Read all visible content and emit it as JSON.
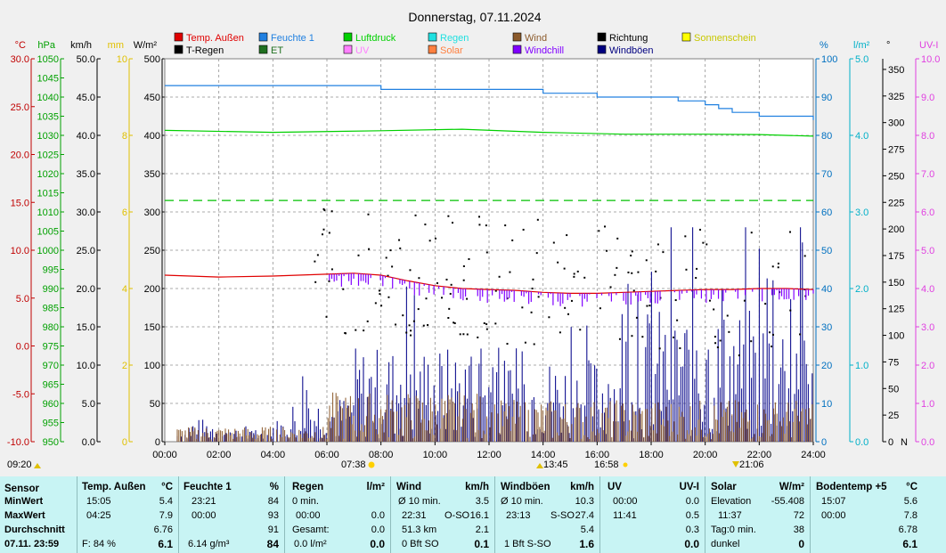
{
  "chart_data": {
    "type": "line",
    "title": "Donnerstag, 07.11.2024",
    "x": {
      "ticks": [
        "00:00",
        "02:00",
        "04:00",
        "06:00",
        "08:00",
        "10:00",
        "12:00",
        "14:00",
        "16:00",
        "18:00",
        "20:00",
        "22:00",
        "24:00"
      ],
      "range_hours": [
        0,
        24
      ]
    },
    "left_axes": [
      {
        "unit": "°C",
        "color": "#c00000",
        "ticks": [
          "30.0",
          "25.0",
          "20.0",
          "15.0",
          "10.0",
          "5.0",
          "0.0",
          "-5.0",
          "-10.0"
        ]
      },
      {
        "unit": "hPa",
        "color": "#00a000",
        "ticks": [
          "1050",
          "1045",
          "1040",
          "1035",
          "1030",
          "1025",
          "1020",
          "1015",
          "1010",
          "1005",
          "1000",
          "995",
          "990",
          "985",
          "980",
          "975",
          "970",
          "965",
          "960",
          "955",
          "950"
        ]
      },
      {
        "unit": "km/h",
        "color": "#000000",
        "ticks": [
          "50.0",
          "45.0",
          "40.0",
          "35.0",
          "30.0",
          "25.0",
          "20.0",
          "15.0",
          "10.0",
          "5.0",
          "0.0"
        ]
      },
      {
        "unit": "mm",
        "color": "#e0c000",
        "ticks": [
          "10",
          "8",
          "6",
          "4",
          "2",
          "0"
        ]
      },
      {
        "unit": "W/m²",
        "color": "#000000",
        "ticks": [
          "500",
          "450",
          "400",
          "350",
          "300",
          "250",
          "200",
          "150",
          "100",
          "50",
          "0"
        ]
      }
    ],
    "right_axes": [
      {
        "unit": "%",
        "color": "#0070c0",
        "ticks": [
          "100",
          "90",
          "80",
          "70",
          "60",
          "50",
          "40",
          "30",
          "20",
          "10",
          "0"
        ]
      },
      {
        "unit": "l/m²",
        "color": "#00b0c8",
        "ticks": [
          "5.0",
          "4.0",
          "3.0",
          "2.0",
          "1.0",
          "0.0"
        ]
      },
      {
        "unit": "°",
        "color": "#000000",
        "ticks": [
          "350",
          "325",
          "300",
          "275",
          "250",
          "225",
          "200",
          "175",
          "150",
          "125",
          "100",
          "75",
          "50",
          "25",
          "0"
        ],
        "extra": "N"
      },
      {
        "unit": "UV-I",
        "color": "#e040e0",
        "ticks": [
          "10.0",
          "9.0",
          "8.0",
          "7.0",
          "6.0",
          "5.0",
          "4.0",
          "3.0",
          "2.0",
          "1.0",
          "0.0"
        ]
      }
    ],
    "legend": [
      {
        "name": "Temp. Außen",
        "color": "#e00000"
      },
      {
        "name": "Feuchte 1",
        "color": "#2080e0"
      },
      {
        "name": "Luftdruck",
        "color": "#00d000"
      },
      {
        "name": "Regen",
        "color": "#20e0e0"
      },
      {
        "name": "Wind",
        "color": "#8b5a2b"
      },
      {
        "name": "Richtung",
        "color": "#000000"
      },
      {
        "name": "Sonnenschein",
        "color": "#ffff00"
      },
      {
        "name": "T-Regen",
        "color": "#000000"
      },
      {
        "name": "ET",
        "color": "#207020"
      },
      {
        "name": "UV",
        "color": "#ff80ff"
      },
      {
        "name": "Solar",
        "color": "#ff8040"
      },
      {
        "name": "Windchill",
        "color": "#8000ff"
      },
      {
        "name": "Windböen",
        "color": "#000080"
      }
    ],
    "series": [
      {
        "name": "Temp. Außen",
        "axis": "°C",
        "x": [
          0,
          2,
          4,
          6,
          7,
          8,
          9,
          10,
          11,
          12,
          13,
          14,
          15,
          16,
          17,
          18,
          19,
          20,
          21,
          22,
          23,
          24
        ],
        "values": [
          7.4,
          7.2,
          7.3,
          7.5,
          7.6,
          7.4,
          6.8,
          6.3,
          6.0,
          5.9,
          5.8,
          5.6,
          5.5,
          5.5,
          5.6,
          5.7,
          5.8,
          5.9,
          5.9,
          6.0,
          6.0,
          5.9
        ]
      },
      {
        "name": "Feuchte 1",
        "axis": "%",
        "x": [
          0,
          7.5,
          8,
          12,
          14,
          15,
          16,
          17,
          18,
          19,
          20,
          20.5,
          21,
          22,
          23,
          24
        ],
        "values": [
          93,
          93,
          92,
          92,
          91,
          91,
          90,
          90,
          90,
          89,
          88,
          87,
          86,
          85,
          85,
          84
        ]
      },
      {
        "name": "Luftdruck",
        "axis": "hPa",
        "x": [
          0,
          4,
          8,
          11,
          14,
          17,
          20,
          22,
          24
        ],
        "values": [
          1031.3,
          1030.8,
          1031.2,
          1031.6,
          1030.8,
          1030.3,
          1030.3,
          1030.2,
          1029.8
        ]
      }
    ],
    "reference_lines": [
      {
        "axis": "W/m²",
        "value": 315,
        "color": "#00c000",
        "style": "dashed"
      }
    ],
    "grid": true,
    "events": {
      "left": "09:20",
      "sunrise": "07:38",
      "solar_noon": "13:45",
      "sunset": "16:58",
      "moon": "21:06"
    }
  },
  "summary": {
    "row_labels": {
      "title": "Sensor",
      "min": "MinWert",
      "max": "MaxWert",
      "avg": "Durchschnitt",
      "cur": "07.11. 23:59"
    },
    "temp": {
      "title": "Temp. Außen",
      "unit": "°C",
      "min_t": "15:05",
      "min_v": "5.4",
      "max_t": "04:25",
      "max_v": "7.9",
      "avg": "6.76",
      "cur_l": "F: 84 %",
      "cur_v": "6.1"
    },
    "hum": {
      "title": "Feuchte 1",
      "unit": "%",
      "min_t": "23:21",
      "min_v": "84",
      "max_t": "00:00",
      "max_v": "93",
      "avg": "91",
      "cur_l": "6.14 g/m³",
      "cur_v": "84"
    },
    "rain": {
      "title": "Regen",
      "unit": "l/m²",
      "min_t": "0 min.",
      "min_v": "",
      "max_t": "00:00",
      "max_v": "0.0",
      "avg_l": "Gesamt:",
      "avg": "0.0",
      "cur_l": "0.0 l/m²",
      "cur_v": "0.0"
    },
    "wind": {
      "title": "Wind",
      "unit": "km/h",
      "min_t": "Ø 10 min.",
      "min_v": "3.5",
      "max_t": "22:31",
      "max_m": "O-SO",
      "max_v": "16.1",
      "avg_l": "51.3 km",
      "avg": "2.1",
      "cur_l": "0 Bft SO",
      "cur_v": "0.1"
    },
    "gust": {
      "title": "Windböen",
      "unit": "km/h",
      "min_t": "Ø 10 min.",
      "min_v": "10.3",
      "max_t": "23:13",
      "max_m": "S-SO",
      "max_v": "27.4",
      "avg": "5.4",
      "cur_l": "1 Bft S-SO",
      "cur_v": "1.6"
    },
    "uv": {
      "title": "UV",
      "unit": "UV-I",
      "min_t": "00:00",
      "min_v": "0.0",
      "max_t": "11:41",
      "max_v": "0.5",
      "avg": "0.3",
      "cur_v": "0.0"
    },
    "solar": {
      "title": "Solar",
      "unit": "W/m²",
      "min_t": "Elevation",
      "min_v": "-55.408",
      "max_t": "11:37",
      "max_v": "72",
      "avg_l": "Tag:0 min.",
      "avg": "38",
      "cur_l": "dunkel",
      "cur_v": "0"
    },
    "soil": {
      "title": "Bodentemp +5",
      "unit": "°C",
      "min_t": "15:07",
      "min_v": "5.6",
      "max_t": "00:00",
      "max_v": "7.8",
      "avg": "6.78",
      "cur_v": "6.1"
    }
  }
}
